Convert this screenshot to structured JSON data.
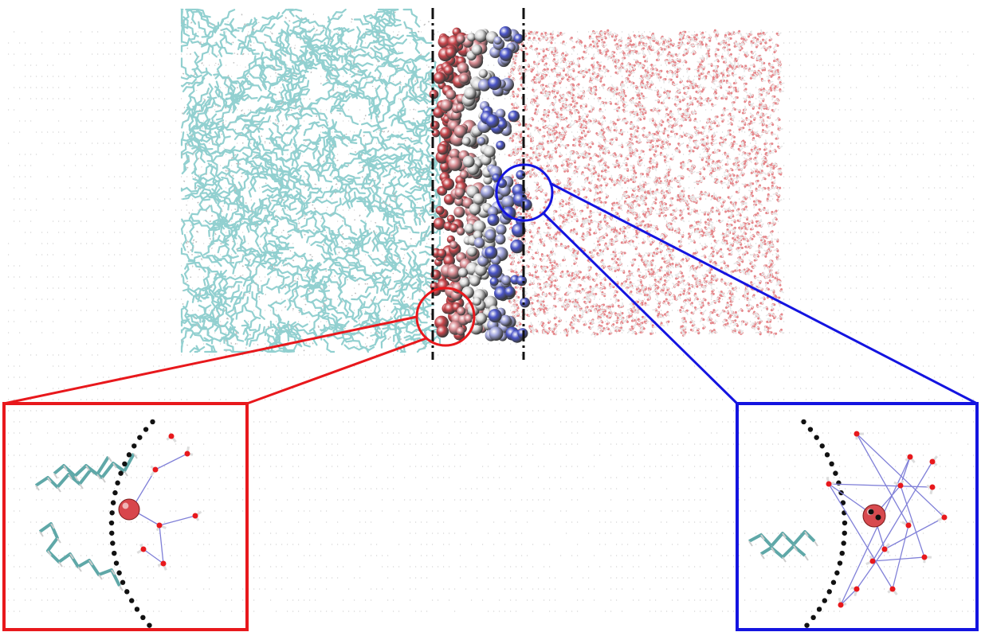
{
  "figure": {
    "description_tag": "molecular-dynamics-interface-snapshot",
    "colors": {
      "hydrocarbon": "#7fc8c8",
      "water": "#e6878b",
      "interface_red": "#c8454b",
      "interface_blue": "#4b55c8",
      "interface_white": "#dcdcdc",
      "red_callout": "#e8181c",
      "blue_callout": "#1414e0",
      "dashed_line": "#111111",
      "hbond": "#8080d8"
    },
    "regions": [
      {
        "name": "hydrocarbon-phase",
        "color_key": "hydrocarbon"
      },
      {
        "name": "interfacial-layer",
        "color_key": "interface_red"
      },
      {
        "name": "water-phase",
        "color_key": "water"
      }
    ],
    "insets": [
      {
        "name": "red-inset",
        "color_key": "red_callout",
        "side": "left"
      },
      {
        "name": "blue-inset",
        "color_key": "blue_callout",
        "side": "right"
      }
    ]
  }
}
